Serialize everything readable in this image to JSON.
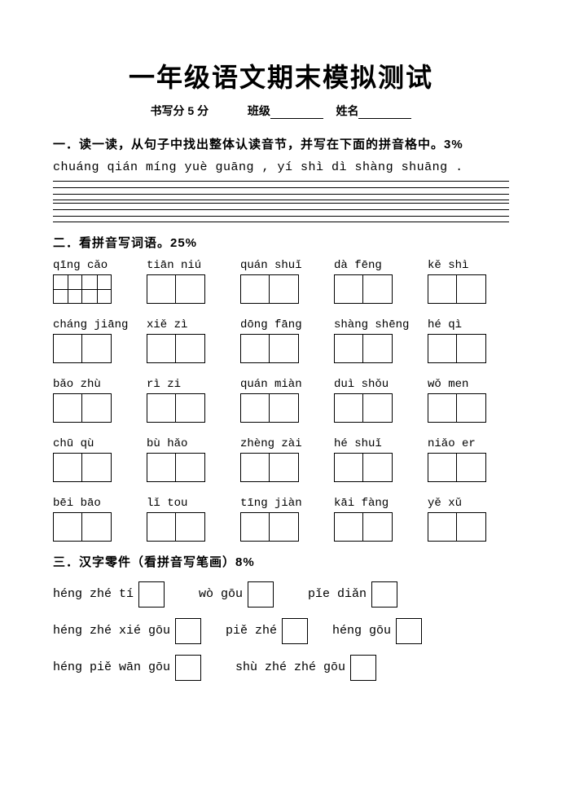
{
  "title": "一年级语文期末模拟测试",
  "sub": {
    "writing": "书写分 5 分",
    "class_label": "班级",
    "name_label": "姓名"
  },
  "s1": {
    "heading": "一．读一读，从句子中找出整体认读音节，并写在下面的拼音格中。3%",
    "sentence": "chuáng qián míng yuè guāng , yí shì dì shàng shuāng ."
  },
  "s2": {
    "heading": "二．看拼音写词语。25%",
    "words": [
      {
        "py": "qīng  cǎo",
        "n": 2,
        "tian": true
      },
      {
        "py": "tiān  niú",
        "n": 2
      },
      {
        "py": "quán  shuǐ",
        "n": 2
      },
      {
        "py": "dà  fēng",
        "n": 2
      },
      {
        "py": "kě  shì",
        "n": 2
      },
      {
        "py": "cháng  jiāng",
        "n": 2
      },
      {
        "py": "xiě   zì",
        "n": 2
      },
      {
        "py": "dōng  fāng",
        "n": 2
      },
      {
        "py": "shàng  shēng",
        "n": 2
      },
      {
        "py": "hé   qì",
        "n": 2
      },
      {
        "py": "bǎo  zhù",
        "n": 2
      },
      {
        "py": "rì   zi",
        "n": 2
      },
      {
        "py": "quán  miàn",
        "n": 2
      },
      {
        "py": "duì  shǒu",
        "n": 2
      },
      {
        "py": "wǒ  men",
        "n": 2
      },
      {
        "py": "chū  qù",
        "n": 2
      },
      {
        "py": "bù   hǎo",
        "n": 2
      },
      {
        "py": "zhèng  zài",
        "n": 2
      },
      {
        "py": "hé  shuǐ",
        "n": 2
      },
      {
        "py": "niǎo  er",
        "n": 2
      },
      {
        "py": "bēi  bāo",
        "n": 2
      },
      {
        "py": "lǐ  tou",
        "n": 2
      },
      {
        "py": "tīng  jiàn",
        "n": 2
      },
      {
        "py": "kāi  fàng",
        "n": 2
      },
      {
        "py": "yě   xǔ",
        "n": 2
      }
    ]
  },
  "s3": {
    "heading": "三．汉字零件（看拼音写笔画）8%",
    "row1": {
      "a": "héng zhé tí",
      "b": "wò gōu",
      "c": "pǐe diǎn"
    },
    "row2": {
      "a": "héng zhé xié gōu",
      "b": "piě zhé",
      "c": "héng gōu"
    },
    "row3": {
      "a": "héng piě wān gōu",
      "b": "shù zhé zhé gōu"
    }
  }
}
